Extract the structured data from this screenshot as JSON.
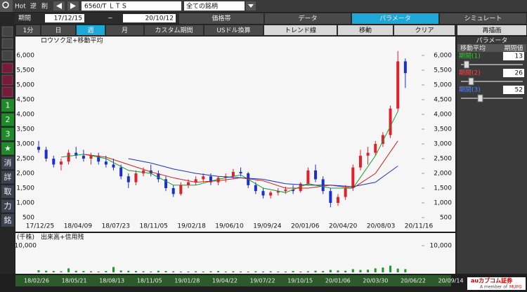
{
  "toolbar": {
    "hot": "Hot",
    "reverse": "逆",
    "delete": "削",
    "symbol": "6560/T ＬＴＳ",
    "list": "全ての銘柄"
  },
  "period": {
    "label": "期間",
    "from": "17/12/15",
    "sep": "~",
    "to": "20/10/12"
  },
  "tabs": [
    "価格帯",
    "データ",
    "パラメータ",
    "シミュレート"
  ],
  "active_tab": 2,
  "intervals": [
    "1分",
    "日",
    "週",
    "月",
    "カスタム期間",
    "USドル換算"
  ],
  "active_interval": 2,
  "tools": [
    "トレンド線",
    "移動",
    "クリア"
  ],
  "redraw": "再描画",
  "side_buttons": [
    "1",
    "2",
    "3",
    "★",
    "消",
    "詳",
    "取",
    "力",
    "銘"
  ],
  "chart_data": [
    {
      "type": "candlestick",
      "title": "ロウソク足+移動平均",
      "candles": [
        [
          2900,
          3100,
          2700,
          2800
        ],
        [
          2800,
          2900,
          2400,
          2500
        ],
        [
          2500,
          2600,
          2200,
          2300
        ],
        [
          2300,
          2500,
          2100,
          2400
        ],
        [
          2400,
          2800,
          2300,
          2700
        ],
        [
          2700,
          2900,
          2500,
          2600
        ],
        [
          2600,
          2800,
          2400,
          2500
        ],
        [
          2500,
          2700,
          2300,
          2600
        ],
        [
          2600,
          2700,
          2300,
          2400
        ],
        [
          2400,
          2600,
          2200,
          2300
        ],
        [
          2300,
          2500,
          2100,
          2200
        ],
        [
          2200,
          2300,
          1800,
          1900
        ],
        [
          1900,
          2000,
          1500,
          1700
        ],
        [
          1700,
          2100,
          1600,
          2000
        ],
        [
          2000,
          2200,
          1900,
          2100
        ],
        [
          2100,
          2300,
          1900,
          2000
        ],
        [
          2000,
          2100,
          1700,
          1800
        ],
        [
          1800,
          1900,
          1400,
          1500
        ],
        [
          1500,
          1600,
          1200,
          1300
        ],
        [
          1300,
          1700,
          1250,
          1600
        ],
        [
          1600,
          1800,
          1500,
          1700
        ],
        [
          1700,
          1900,
          1600,
          1800
        ],
        [
          1800,
          2000,
          1700,
          1900
        ],
        [
          1900,
          2000,
          1600,
          1700
        ],
        [
          1700,
          1900,
          1600,
          1850
        ],
        [
          1850,
          2000,
          1700,
          1900
        ],
        [
          1900,
          2150,
          1800,
          2050
        ],
        [
          2050,
          2200,
          1900,
          2000
        ],
        [
          2000,
          2050,
          1500,
          1600
        ],
        [
          1600,
          1700,
          1300,
          1400
        ],
        [
          1400,
          1500,
          1150,
          1250
        ],
        [
          1250,
          1400,
          1150,
          1350
        ],
        [
          1350,
          1500,
          1250,
          1400
        ],
        [
          1400,
          1550,
          1300,
          1450
        ],
        [
          1450,
          1600,
          1300,
          1400
        ],
        [
          1400,
          1700,
          1350,
          1650
        ],
        [
          1650,
          2200,
          1600,
          2100
        ],
        [
          2100,
          2300,
          1700,
          1800
        ],
        [
          1800,
          1900,
          1300,
          1400
        ],
        [
          1400,
          1500,
          850,
          1000
        ],
        [
          1000,
          1300,
          900,
          1200
        ],
        [
          1200,
          1600,
          1100,
          1500
        ],
        [
          1500,
          2300,
          1400,
          2200
        ],
        [
          2200,
          2800,
          2100,
          2600
        ],
        [
          2600,
          2900,
          2300,
          2700
        ],
        [
          2700,
          3100,
          2600,
          3000
        ],
        [
          3000,
          3400,
          2900,
          3300
        ],
        [
          3300,
          4300,
          3200,
          4200
        ],
        [
          4200,
          6150,
          4100,
          5800
        ],
        [
          5800,
          5900,
          4900,
          5400
        ]
      ],
      "up_color": "#e0202a",
      "down_color": "#1a2fd0",
      "series": [
        {
          "color": "#1a9a2a",
          "values": [
            null,
            2550,
            2650,
            2500,
            2100,
            2000,
            1600,
            1600,
            1800,
            1950,
            1500,
            1350,
            1650,
            1500,
            1500,
            2600,
            4100
          ]
        },
        {
          "color": "#d02020",
          "values": [
            null,
            null,
            2650,
            2550,
            2300,
            2050,
            1850,
            1700,
            1750,
            1850,
            1750,
            1500,
            1500,
            1600,
            1500,
            2000,
            3100
          ]
        },
        {
          "color": "#2030c0",
          "values": [
            null,
            null,
            null,
            null,
            2500,
            2350,
            2150,
            2000,
            1900,
            1850,
            1800,
            1650,
            1600,
            1600,
            1550,
            1700,
            2250
          ]
        }
      ],
      "ylim": [
        500,
        6000
      ],
      "yticks": [
        {
          "value": 6000,
          "label": "6,000"
        },
        {
          "value": 5500,
          "label": "5,500"
        },
        {
          "value": 5000,
          "label": "5,000"
        },
        {
          "value": 4500,
          "label": "4,500"
        },
        {
          "value": 4000,
          "label": "4,000"
        },
        {
          "value": 3500,
          "label": "3,500"
        },
        {
          "value": 3000,
          "label": "3,000"
        },
        {
          "value": 2500,
          "label": "2,500"
        },
        {
          "value": 2000,
          "label": "2,000"
        },
        {
          "value": 1500,
          "label": "1,500"
        },
        {
          "value": 1000,
          "label": "1,000"
        },
        500
      ],
      "x_labels": [
        "17/12/25",
        "18/04/09",
        "18/07/23",
        "18/11/05",
        "19/02/18",
        "19/06/10",
        "19/09/24",
        "20/01/06",
        "20/04/20",
        "20/08/03",
        "20/11/16"
      ]
    },
    {
      "type": "bar",
      "title": "出来高+信用残",
      "unit": "(千株)",
      "color": "#1a9a2a",
      "values": [
        800,
        600,
        500,
        400,
        1500,
        600,
        500,
        400,
        300,
        500,
        2000,
        700,
        600,
        500,
        400,
        300,
        600,
        500,
        400,
        300,
        300,
        400,
        300,
        400,
        500,
        300,
        400,
        300,
        300,
        400,
        300,
        400,
        300,
        300,
        500,
        300,
        400,
        600,
        500,
        900,
        700,
        600,
        1200,
        900,
        1000,
        1500,
        1800,
        2500,
        1400,
        1200
      ],
      "ylim": [
        0,
        10000
      ],
      "yticks": [
        {
          "value": 10000,
          "label": "10,000"
        }
      ]
    }
  ],
  "timeline": [
    "18/02/26",
    "18/05/21",
    "18/08/13",
    "18/11/05",
    "19/01/28",
    "19/04/22",
    "19/07/22",
    "19/10/15",
    "20/01/06",
    "20/03/30",
    "20/06/22",
    "20/09/14"
  ],
  "params": {
    "title": "パラメータ",
    "col1": "移動平均",
    "col2": "期間値",
    "rows": [
      {
        "name": "期間(1)",
        "value": 13,
        "color": "#3c3"
      },
      {
        "name": "期間(2)",
        "value": 26,
        "color": "#f44"
      },
      {
        "name": "期間(3)",
        "value": 52,
        "color": "#58f"
      }
    ]
  },
  "logo": {
    "brand": "auカブコム証券",
    "sub": "A member of",
    "group": "MUFG"
  }
}
